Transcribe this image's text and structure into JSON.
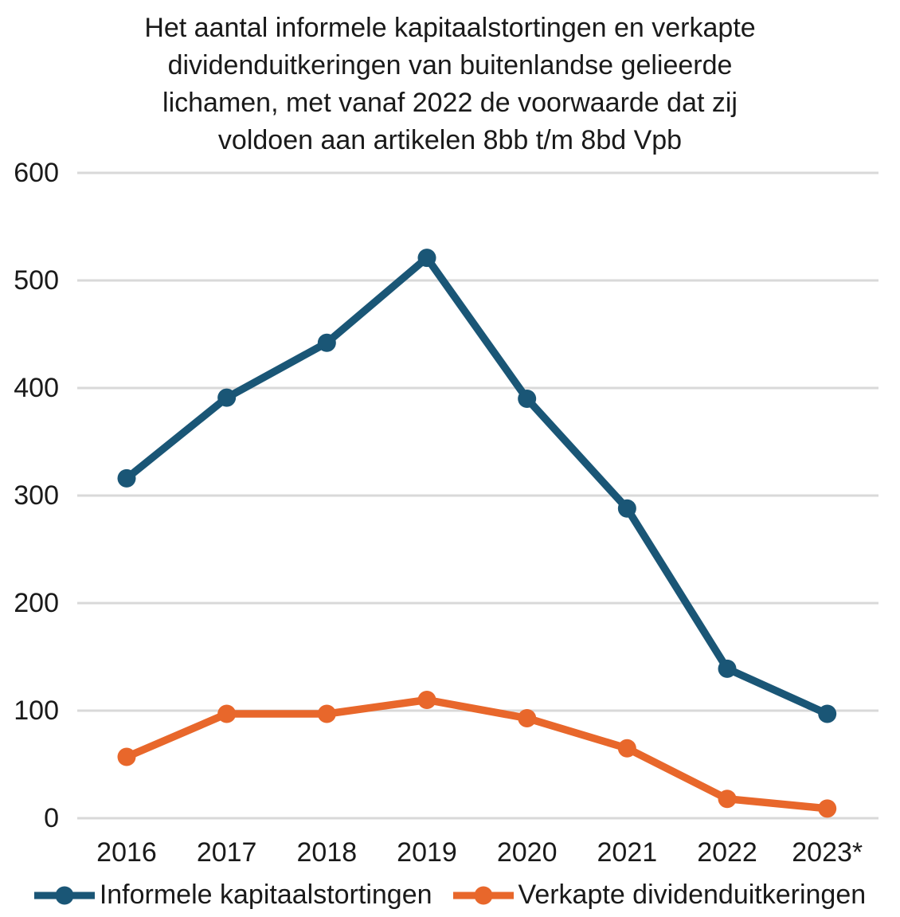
{
  "chart_data": {
    "type": "line",
    "title": "Het aantal informele kapitaalstortingen en verkapte dividenduitkeringen van buitenlandse gelieerde lichamen, met vanaf 2022 de voorwaarde dat zij voldoen aan artikelen 8bb t/m 8bd Vpb",
    "title_lines": [
      "Het aantal informele kapitaalstortingen en verkapte",
      "dividenduitkeringen van buitenlandse gelieerde",
      "lichamen, met vanaf 2022 de voorwaarde dat zij",
      "voldoen aan artikelen 8bb t/m 8bd Vpb"
    ],
    "categories": [
      "2016",
      "2017",
      "2018",
      "2019",
      "2020",
      "2021",
      "2022",
      "2023*"
    ],
    "series": [
      {
        "name": "Informele kapitaalstortingen",
        "color": "#1A5676",
        "values": [
          316,
          391,
          442,
          521,
          390,
          288,
          139,
          97
        ]
      },
      {
        "name": "Verkapte dividenduitkeringen",
        "color": "#E8672B",
        "values": [
          57,
          97,
          97,
          110,
          93,
          65,
          18,
          9
        ]
      }
    ],
    "yticks": [
      0,
      100,
      200,
      300,
      400,
      500,
      600
    ],
    "ylim": [
      0,
      600
    ],
    "xlabel": "",
    "ylabel": "",
    "grid": true,
    "gridline_color": "#D9D9D9",
    "legend_position": "bottom",
    "marker": "circle",
    "text_color": "#1A1A1A"
  }
}
